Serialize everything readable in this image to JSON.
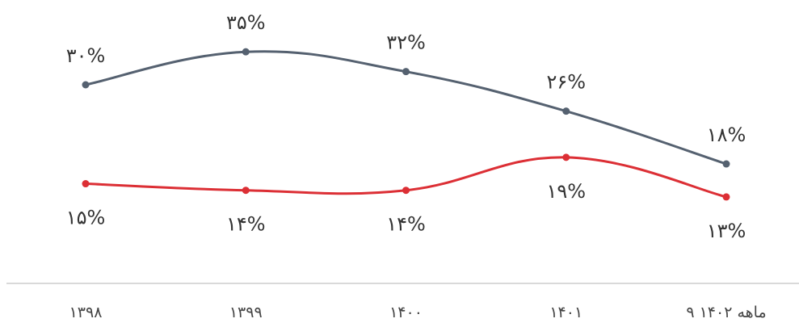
{
  "chart_data": {
    "type": "line",
    "title": "",
    "xlabel": "",
    "ylabel": "",
    "categories": [
      "۱۳۹۸",
      "۱۳۹۹",
      "۱۴۰۰",
      "۱۴۰۱",
      "۹ ماهه ۱۴۰۲"
    ],
    "ylim": [
      0,
      40
    ],
    "grid": false,
    "legend": "none",
    "series": [
      {
        "color": "#556170",
        "values": [
          30,
          35,
          32,
          26,
          18
        ],
        "labels": [
          "۳۰%",
          "۳۵%",
          "۳۲%",
          "۲۶%",
          "۱۸%"
        ]
      },
      {
        "color": "#dc2f35",
        "values": [
          15,
          14,
          14,
          19,
          13
        ],
        "labels": [
          "۱۵%",
          "۱۴%",
          "۱۴%",
          "۱۹%",
          "۱۳%"
        ]
      }
    ]
  }
}
